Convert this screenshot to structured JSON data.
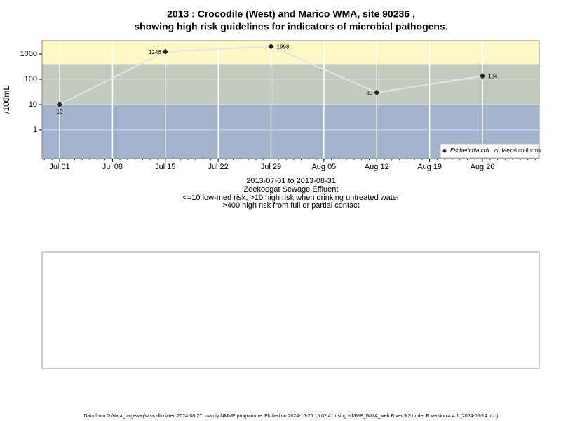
{
  "chart_data": {
    "type": "line",
    "title": [
      "2013 : Crocodile (West) and Marico WMA, site 90236 ,",
      "showing high risk guidelines for indicators of microbial pathogens."
    ],
    "y_label": "/100mL",
    "x": [
      "Jul 01",
      "Jul 15",
      "Jul 29",
      "Aug 12",
      "Aug 26"
    ],
    "xticks": [
      "Jul 01",
      "Jul 08",
      "Jul 15",
      "Jul 22",
      "Jul 29",
      "Aug 05",
      "Aug 12",
      "Aug 19",
      "Aug 26"
    ],
    "series": [
      {
        "name": "Escherichia coli",
        "color": "#222222",
        "line_color": "#e4e4e4",
        "values": [
          10,
          1246,
          1998,
          30,
          134
        ]
      },
      {
        "name": "faecal coliforms",
        "color": "#ffffff",
        "line_color": "#e4e4e4",
        "values": [
          null,
          null,
          null,
          null,
          null
        ]
      }
    ],
    "ylim": [
      0.072,
      3400
    ],
    "yticks": [
      1,
      10,
      100,
      1000
    ],
    "log_y": true,
    "grid": true,
    "thresholds": [
      10,
      400
    ],
    "band_colors": [
      "#a3b3cc",
      "#c2cbbe",
      "#fdf7c4"
    ],
    "legend": "bottom-right",
    "notes": [
      "2013-07-01 to 2013-08-31",
      "Zeekoegat Sewage Effluent",
      "<=10 low-med risk; >10 high risk when drinking untreated water",
      ">400 high risk from full or partial contact"
    ],
    "footer": "Data from D:/data_large/wq/wms.db dated 2024-08-27, mainly NMMP programme. Plotted on 2024-10-25 15:02:41 using NMMP_WMA_web.R ver 9.3 under R version 4.4.1 (2024-06-14 ucrt)"
  }
}
